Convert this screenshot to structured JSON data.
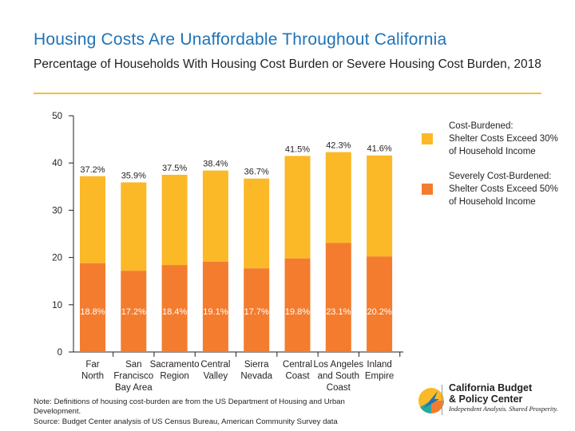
{
  "header": {
    "title": "Housing Costs Are Unaffordable Throughout California",
    "subtitle": "Percentage of Households With Housing Cost Burden or Severe Housing Cost Burden, 2018"
  },
  "colors": {
    "title": "#1f73b7",
    "rule": "#f2c036",
    "cost_burdened": "#fbb928",
    "severely_cost_burdened": "#f47c2f",
    "axis": "#231f20"
  },
  "legend": {
    "cost_burdened": [
      "Cost-Burdened:",
      "Shelter Costs Exceed 30%",
      "of Household Income"
    ],
    "severely": [
      "Severely Cost-Burdened:",
      "Shelter Costs Exceed 50%",
      "of Household Income"
    ]
  },
  "chart_data": {
    "type": "bar",
    "stacked": true,
    "categories": [
      [
        "Far",
        "North"
      ],
      [
        "San",
        "Francisco",
        "Bay Area"
      ],
      [
        "Sacramento",
        "Region"
      ],
      [
        "Central",
        "Valley"
      ],
      [
        "Sierra",
        "Nevada"
      ],
      [
        "Central",
        "Coast"
      ],
      [
        "Los Angeles",
        "and South",
        "Coast"
      ],
      [
        "Inland",
        "Empire"
      ]
    ],
    "series": [
      {
        "name": "Severely Cost-Burdened: Shelter Costs Exceed 50% of Household Income",
        "values": [
          18.8,
          17.2,
          18.4,
          19.1,
          17.7,
          19.8,
          23.1,
          20.2
        ],
        "labels": [
          "18.8%",
          "17.2%",
          "18.4%",
          "19.1%",
          "17.7%",
          "19.8%",
          "23.1%",
          "20.2%"
        ]
      },
      {
        "name": "Cost-Burdened: Shelter Costs Exceed 30% of Household Income",
        "totals": [
          37.2,
          35.9,
          37.5,
          38.4,
          36.7,
          41.5,
          42.3,
          41.6
        ],
        "labels": [
          "37.2%",
          "35.9%",
          "37.5%",
          "38.4%",
          "36.7%",
          "41.5%",
          "42.3%",
          "41.6%"
        ]
      }
    ],
    "ylim": [
      0,
      50
    ],
    "yticks": [
      0,
      10,
      20,
      30,
      40,
      50
    ],
    "xlabel": "",
    "ylabel": "",
    "grid": false,
    "legend_position": "right"
  },
  "notes": {
    "line1": "Note: Definitions of housing cost-burden are from the US Department of Housing and Urban Development.",
    "line2": "Source: Budget Center analysis of US Census Bureau, American Community Survey data"
  },
  "logo": {
    "name_line1": "California Budget",
    "name_line2": "& Policy Center",
    "tagline": "Independent Analysis. Shared Prosperity."
  }
}
